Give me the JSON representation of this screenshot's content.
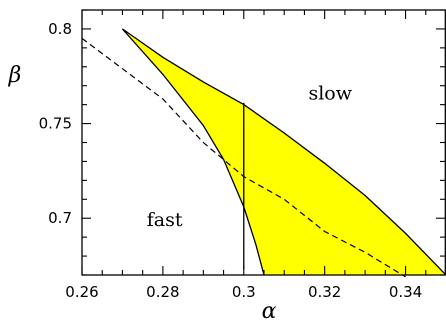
{
  "chart_data": {
    "type": "line",
    "xlabel": "α",
    "ylabel": "β",
    "xlim": [
      0.26,
      0.35
    ],
    "ylim": [
      0.67,
      0.81
    ],
    "x_ticks": [
      0.26,
      0.28,
      0.3,
      0.32,
      0.34
    ],
    "x_tick_labels": [
      "0.26",
      "0.28",
      "0.3",
      "0.32",
      "0.34"
    ],
    "y_ticks": [
      0.7,
      0.75,
      0.8
    ],
    "y_tick_labels": [
      "0.7",
      "0.75",
      "0.8"
    ],
    "x_minor_step": 0.005,
    "y_minor_step": 0.01,
    "grid": false,
    "regions": [
      {
        "label": "fast",
        "at": {
          "x": 0.276,
          "y": 0.699
        }
      },
      {
        "label": "slow",
        "at": {
          "x": 0.316,
          "y": 0.766
        }
      }
    ],
    "fill_color": "#ffff00",
    "upper_boundary": {
      "x": [
        0.27,
        0.28,
        0.29,
        0.3,
        0.31,
        0.32,
        0.33,
        0.34,
        0.35
      ],
      "y": [
        0.8,
        0.785,
        0.772,
        0.76,
        0.745,
        0.729,
        0.712,
        0.692,
        0.67
      ]
    },
    "lower_boundary": {
      "x": [
        0.27,
        0.28,
        0.29,
        0.295,
        0.3,
        0.303,
        0.305
      ],
      "y": [
        0.8,
        0.776,
        0.749,
        0.731,
        0.706,
        0.686,
        0.67
      ]
    },
    "dashed_line": {
      "x": [
        0.26,
        0.27,
        0.28,
        0.29,
        0.3,
        0.31,
        0.32,
        0.33,
        0.34
      ],
      "y": [
        0.795,
        0.779,
        0.763,
        0.74,
        0.722,
        0.71,
        0.693,
        0.682,
        0.669
      ]
    },
    "vertical_line": {
      "x": 0.3,
      "y_range": [
        0.673,
        0.761
      ]
    }
  }
}
